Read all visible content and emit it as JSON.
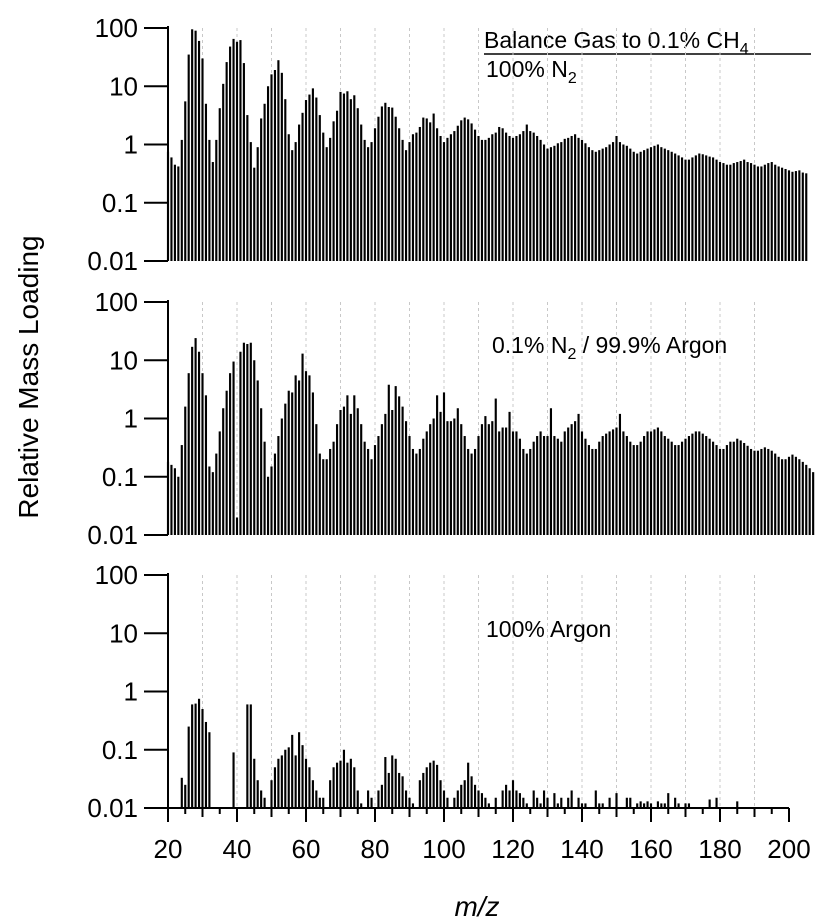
{
  "chart_data": {
    "type": "bar",
    "ylabel": "Relative Mass Loading",
    "xlabel": "m/z",
    "xlim": [
      20,
      200
    ],
    "x_ticks": [
      "20",
      "40",
      "60",
      "80",
      "100",
      "120",
      "140",
      "160",
      "180",
      "200"
    ],
    "y_scale": "log",
    "ylim": [
      0.01,
      100
    ],
    "y_ticks": [
      "0.01",
      "0.1",
      "1",
      "10",
      "100"
    ],
    "grid": "vertical dotted at every 10 m/z",
    "bar_color": "#000000",
    "grid_color": "#c8c8c8",
    "legend_title": "Balance Gas to 0.1% CH",
    "legend_title_subscript": "4",
    "panels": [
      {
        "label": "100% N",
        "label_subscript": "2",
        "label_suffix": "",
        "x_start": 20,
        "values": [
          0.75,
          0.6,
          0.45,
          0.42,
          1.2,
          5.5,
          35,
          95,
          90,
          60,
          30,
          5,
          1.2,
          0.5,
          1.2,
          4.2,
          11,
          26,
          48,
          65,
          58,
          62,
          25,
          3.2,
          1.1,
          0.4,
          0.9,
          2.8,
          5,
          10,
          16,
          19,
          28,
          17,
          6,
          1.5,
          0.8,
          1.1,
          2.2,
          3.5,
          5.8,
          7.2,
          9.2,
          6.4,
          3.2,
          1.6,
          0.9,
          1.3,
          2.5,
          3.8,
          8,
          7.5,
          8.2,
          6,
          7,
          4.2,
          2.2,
          1.2,
          0.9,
          1.1,
          1.9,
          3,
          4.5,
          5.2,
          4.4,
          4.3,
          3,
          1.9,
          1.2,
          0.8,
          1.1,
          1.5,
          1.6,
          2,
          2.9,
          2.8,
          2.4,
          3.4,
          1.9,
          1.4,
          1.1,
          1.3,
          1.5,
          1.7,
          2.1,
          2.6,
          2.9,
          2.7,
          2.3,
          1.8,
          1.4,
          1.2,
          1.2,
          1.3,
          1.5,
          1.6,
          2,
          1.9,
          1.6,
          1.4,
          1.3,
          1.4,
          1.5,
          1.7,
          2.2,
          1.7,
          1.6,
          1.4,
          1.2,
          1.0,
          0.85,
          0.9,
          0.95,
          1.05,
          1.1,
          1.25,
          1.3,
          1.4,
          1.5,
          1.3,
          1.2,
          1.05,
          0.9,
          0.8,
          0.75,
          0.8,
          0.85,
          0.9,
          1.0,
          1.1,
          1.4,
          1.1,
          1.0,
          0.95,
          0.85,
          0.75,
          0.7,
          0.75,
          0.8,
          0.85,
          0.9,
          0.95,
          1.0,
          0.9,
          0.85,
          0.8,
          0.75,
          0.7,
          0.65,
          0.6,
          0.55,
          0.55,
          0.6,
          0.65,
          0.7,
          0.68,
          0.65,
          0.62,
          0.6,
          0.55,
          0.5,
          0.48,
          0.45,
          0.45,
          0.48,
          0.5,
          0.52,
          0.55,
          0.5,
          0.48,
          0.45,
          0.42,
          0.42,
          0.45,
          0.48,
          0.5,
          0.45,
          0.42,
          0.4,
          0.38,
          0.36,
          0.34,
          0.35,
          0.36,
          0.33,
          0.32
        ]
      },
      {
        "label": "0.1% N",
        "label_subscript": "2",
        "label_suffix": " / 99.9% Argon",
        "x_start": 20,
        "values": [
          0.18,
          0.16,
          0.14,
          0.1,
          0.35,
          1.6,
          6,
          17,
          24,
          14,
          6,
          2.5,
          0.15,
          0.12,
          0.25,
          0.6,
          1.5,
          3,
          6,
          9.5,
          0.02,
          14,
          20,
          19,
          20,
          10,
          4.5,
          1.5,
          0.4,
          0.1,
          0.15,
          0.25,
          0.5,
          1,
          1.8,
          3,
          2.8,
          5.5,
          4.5,
          13,
          6.5,
          5.5,
          2.8,
          0.8,
          0.25,
          0.2,
          0.2,
          0.3,
          0.4,
          0.8,
          1.4,
          1.6,
          2.5,
          1.2,
          2.5,
          1.5,
          0.8,
          0.4,
          0.3,
          0.2,
          0.35,
          0.5,
          0.8,
          1.2,
          3.8,
          1.4,
          3.6,
          2.4,
          1.6,
          0.9,
          0.5,
          0.3,
          0.25,
          0.3,
          0.45,
          0.6,
          0.8,
          1.0,
          2.5,
          1.3,
          2.8,
          0.9,
          0.9,
          1.0,
          1.5,
          0.8,
          0.5,
          0.3,
          0.25,
          0.3,
          0.5,
          0.8,
          1.1,
          0.8,
          0.9,
          2.2,
          0.6,
          0.7,
          0.7,
          1.3,
          0.6,
          0.6,
          0.45,
          0.3,
          0.25,
          0.3,
          0.4,
          0.5,
          0.6,
          0.5,
          0.5,
          1.5,
          0.5,
          0.45,
          0.4,
          0.6,
          0.7,
          0.8,
          0.9,
          1.2,
          0.6,
          0.45,
          0.35,
          0.3,
          0.3,
          0.4,
          0.5,
          0.55,
          0.6,
          0.65,
          0.7,
          1.2,
          0.6,
          0.5,
          0.4,
          0.35,
          0.35,
          0.4,
          0.5,
          0.6,
          0.6,
          0.65,
          0.7,
          0.6,
          0.5,
          0.45,
          0.4,
          0.35,
          0.35,
          0.4,
          0.45,
          0.5,
          0.55,
          0.6,
          0.6,
          0.55,
          0.5,
          0.45,
          0.4,
          0.35,
          0.3,
          0.3,
          0.35,
          0.4,
          0.4,
          0.45,
          0.42,
          0.38,
          0.34,
          0.3,
          0.28,
          0.28,
          0.3,
          0.32,
          0.3,
          0.28,
          0.25,
          0.22,
          0.2,
          0.2,
          0.22,
          0.24,
          0.22,
          0.2,
          0.18,
          0.16,
          0.14,
          0.12
        ]
      },
      {
        "label": "100% Argon",
        "label_subscript": "",
        "label_suffix": "",
        "x_start": 20,
        "values": [
          0,
          0,
          0,
          0,
          0.033,
          0.025,
          0.25,
          0.6,
          0.62,
          0.75,
          0.5,
          0.3,
          0.2,
          0,
          0,
          0,
          0,
          0,
          0,
          0.09,
          0,
          0,
          0,
          0.6,
          0.6,
          0.07,
          0.03,
          0.02,
          0.015,
          0,
          0.03,
          0.05,
          0.07,
          0.08,
          0.1,
          0.11,
          0.18,
          0.08,
          0.2,
          0.12,
          0.07,
          0.05,
          0.03,
          0.02,
          0.015,
          0.015,
          0,
          0.03,
          0.05,
          0.06,
          0.065,
          0.1,
          0.06,
          0.07,
          0.05,
          0.02,
          0.012,
          0,
          0.02,
          0.015,
          0,
          0.02,
          0.025,
          0.075,
          0.04,
          0.08,
          0.07,
          0.04,
          0.035,
          0.02,
          0.015,
          0.012,
          0,
          0.03,
          0.04,
          0.05,
          0.06,
          0.065,
          0.055,
          0.03,
          0.02,
          0.015,
          0,
          0.015,
          0.02,
          0.025,
          0.03,
          0.06,
          0.035,
          0.025,
          0.02,
          0.018,
          0.015,
          0.012,
          0,
          0.015,
          0,
          0.02,
          0.025,
          0.02,
          0.03,
          0.02,
          0.018,
          0.015,
          0.012,
          0,
          0.02,
          0.015,
          0.012,
          0.02,
          0.015,
          0,
          0.018,
          0.012,
          0.015,
          0,
          0.015,
          0.02,
          0,
          0.015,
          0.012,
          0.012,
          0,
          0,
          0.02,
          0.012,
          0.012,
          0,
          0.015,
          0,
          0.018,
          0,
          0,
          0.015,
          0.015,
          0,
          0.012,
          0.013,
          0.012,
          0.013,
          0.012,
          0,
          0.013,
          0.012,
          0.012,
          0.018,
          0,
          0.015,
          0.012,
          0,
          0.012,
          0.012,
          0,
          0,
          0,
          0,
          0,
          0.014,
          0,
          0.015,
          0,
          0,
          0,
          0,
          0,
          0.013,
          0,
          0,
          0,
          0,
          0,
          0,
          0,
          0,
          0,
          0,
          0,
          0,
          0,
          0,
          0,
          0,
          0,
          0,
          0,
          0,
          0,
          0,
          0,
          0,
          0,
          0
        ]
      }
    ]
  }
}
